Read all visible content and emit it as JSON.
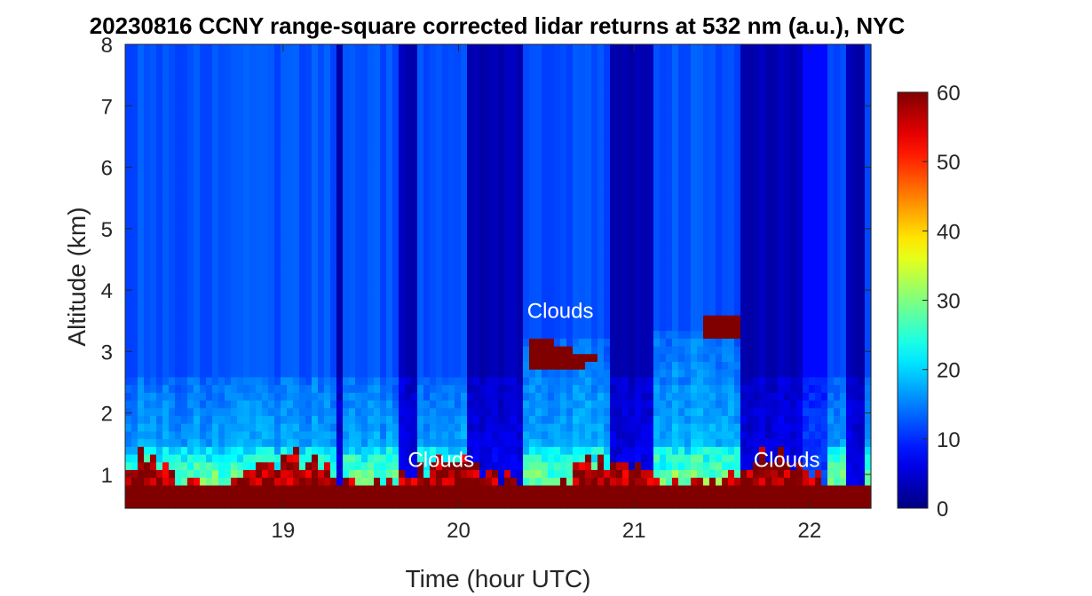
{
  "chart_data": {
    "type": "heatmap",
    "title": "20230816 CCNY range-square corrected lidar returns at 532 nm (a.u.), NYC",
    "xlabel": "Time (hour UTC)",
    "ylabel": "Altitude (km)",
    "xlim": [
      18.1,
      22.35
    ],
    "ylim": [
      0.45,
      8
    ],
    "xticks": [
      19,
      20,
      21,
      22
    ],
    "yticks": [
      1,
      2,
      3,
      4,
      5,
      6,
      7,
      8
    ],
    "colorbar": {
      "colormap": "jet",
      "range": [
        0,
        60
      ],
      "ticks": [
        0,
        10,
        20,
        30,
        40,
        50,
        60
      ]
    },
    "annotations": [
      {
        "text": "Clouds",
        "x": 20.58,
        "y": 3.55
      },
      {
        "text": "Clouds",
        "x": 19.9,
        "y": 1.12
      },
      {
        "text": "Clouds",
        "x": 21.87,
        "y": 1.12
      }
    ]
  }
}
